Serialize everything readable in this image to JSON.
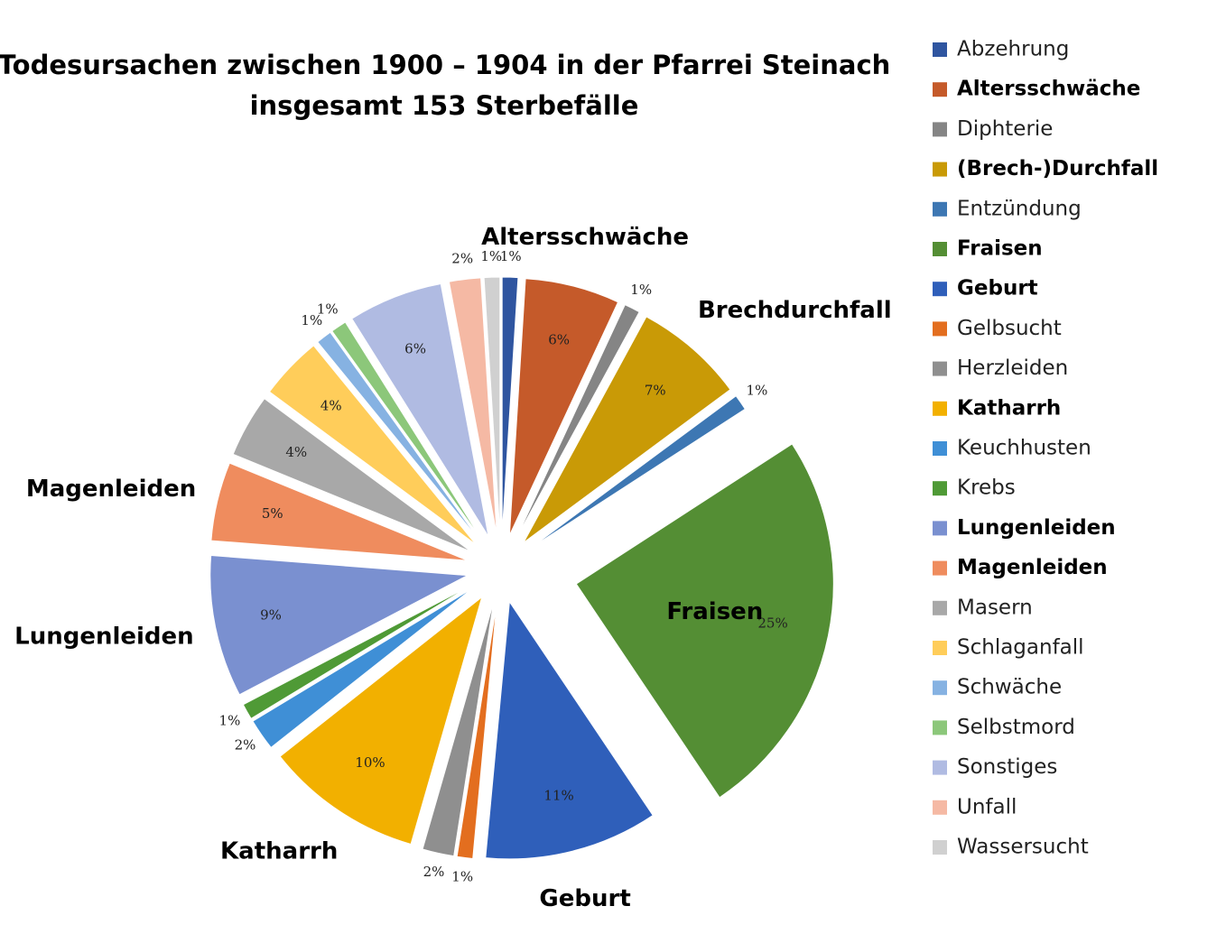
{
  "chart_data": {
    "type": "pie",
    "title": "Todesursachen zwischen 1900 – 1904 in der Pfarrei Steinach",
    "subtitle": "insgesamt 153 Sterbefälle",
    "categories": [
      "Abzehrung",
      "Altersschwäche",
      "Diphterie",
      "(Brech-)Durchfall",
      "Entzündung",
      "Fraisen",
      "Geburt",
      "Gelbsucht",
      "Herzleiden",
      "Katharrh",
      "Keuchhusten",
      "Krebs",
      "Lungenleiden",
      "Magenleiden",
      "Masern",
      "Schlaganfall",
      "Schwäche",
      "Selbstmord",
      "Sonstiges",
      "Unfall",
      "Wassersucht"
    ],
    "values": [
      1,
      6,
      1,
      7,
      1,
      25,
      11,
      1,
      2,
      10,
      2,
      1,
      9,
      5,
      4,
      4,
      1,
      1,
      6,
      2,
      1
    ],
    "value_labels": [
      "1%",
      "6%",
      "1%",
      "7%",
      "1%",
      "25%",
      "11%",
      "1%",
      "2%",
      "10%",
      "2%",
      "1%",
      "9%",
      "5%",
      "4%",
      "4%",
      "1%",
      "1%",
      "6%",
      "2%",
      "1%"
    ],
    "slice_labels": [
      null,
      "Altersschwäche",
      null,
      "Brechdurchfall",
      null,
      "Fraisen",
      "Geburt",
      null,
      null,
      "Katharrh",
      null,
      null,
      "Lungenleiden",
      "Magenleiden",
      null,
      null,
      null,
      null,
      null,
      null,
      null
    ],
    "colors": [
      "#2f55a0",
      "#c55a2a",
      "#858585",
      "#c99a06",
      "#3d77b3",
      "#548e34",
      "#2f5fba",
      "#e36e1f",
      "#8f8f8f",
      "#f2b000",
      "#3f8fd6",
      "#4f9a36",
      "#7a90d0",
      "#ef8c5e",
      "#a8a8a8",
      "#ffcd5a",
      "#86b2e2",
      "#8cc77a",
      "#b0bbe2",
      "#f5b9a4",
      "#d0d0d0"
    ],
    "legend": "right"
  }
}
